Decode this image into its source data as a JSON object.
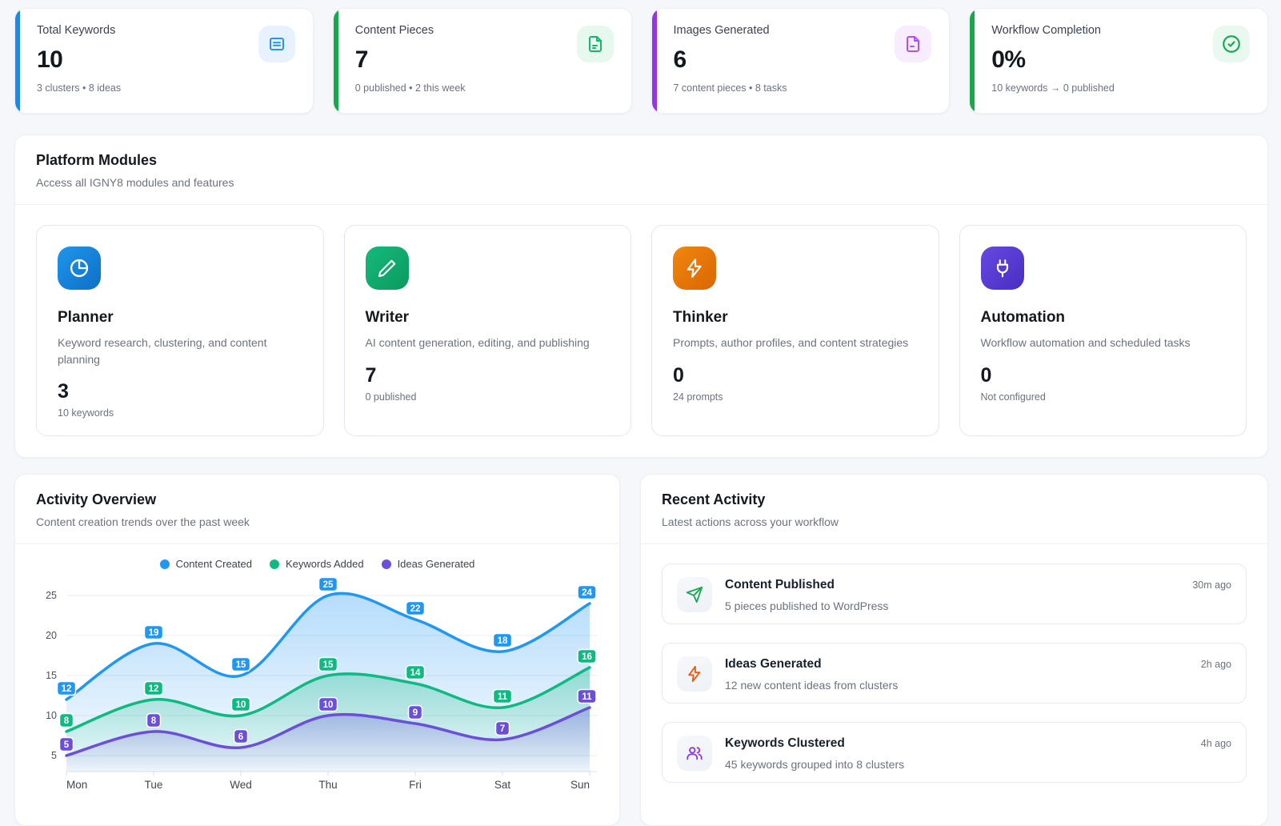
{
  "stats": [
    {
      "label": "Total Keywords",
      "value": "10",
      "sub": "3 clusters • 8 ideas",
      "accent": "#1e88e5",
      "icon": "list-box-icon",
      "icon_bg": "#e8f2fe",
      "icon_color": "#2196f3"
    },
    {
      "label": "Content Pieces",
      "value": "7",
      "sub": "0 published • 2 this week",
      "accent": "#17a74c",
      "icon": "file-text-icon",
      "icon_bg": "#e7f8ef",
      "icon_color": "#12b76a"
    },
    {
      "label": "Images Generated",
      "value": "6",
      "sub": "7 content pieces • 8 tasks",
      "accent": "#9333ea",
      "icon": "file-image-icon",
      "icon_bg": "#f8edfe",
      "icon_color": "#bb4df0"
    },
    {
      "label": "Workflow Completion",
      "value": "0%",
      "sub": "10 keywords → 0 published",
      "accent": "#17a74c",
      "icon": "check-circle-icon",
      "icon_bg": "#e9f9ef",
      "icon_color": "#16a94f"
    }
  ],
  "platform_modules": {
    "title": "Platform Modules",
    "subtitle": "Access all IGNY8 modules and features",
    "modules": [
      {
        "name": "Planner",
        "description": "Keyword research, clustering, and content planning",
        "value": "3",
        "sub": "10 keywords",
        "icon": "pie-chart-icon",
        "colors": [
          "#1e96ea",
          "#0d6fc8"
        ]
      },
      {
        "name": "Writer",
        "description": "AI content generation, editing, and publishing",
        "value": "7",
        "sub": "0 published",
        "icon": "pencil-icon",
        "colors": [
          "#16b97d",
          "#0b9a5e"
        ]
      },
      {
        "name": "Thinker",
        "description": "Prompts, author profiles, and content strategies",
        "value": "0",
        "sub": "24 prompts",
        "icon": "zap-icon",
        "colors": [
          "#f1860e",
          "#d96702"
        ]
      },
      {
        "name": "Automation",
        "description": "Workflow automation and scheduled tasks",
        "value": "0",
        "sub": "Not configured",
        "icon": "plug-icon",
        "colors": [
          "#6549e2",
          "#4a2dc2"
        ]
      }
    ]
  },
  "activity_overview": {
    "title": "Activity Overview",
    "subtitle": "Content creation trends over the past week"
  },
  "chart_data": {
    "type": "line",
    "x": [
      "Mon",
      "Tue",
      "Wed",
      "Thu",
      "Fri",
      "Sat",
      "Sun"
    ],
    "series": [
      {
        "name": "Content Created",
        "color": "#2196f3",
        "values": [
          12,
          19,
          15,
          25,
          22,
          18,
          24
        ]
      },
      {
        "name": "Keywords Added",
        "color": "#10b981",
        "values": [
          8,
          12,
          10,
          15,
          14,
          11,
          16
        ]
      },
      {
        "name": "Ideas Generated",
        "color": "#6b4fd8",
        "values": [
          5,
          8,
          6,
          10,
          9,
          7,
          11
        ]
      }
    ],
    "ylim": [
      5,
      25
    ],
    "yticks": [
      5,
      10,
      15,
      20,
      25
    ],
    "grid": true,
    "smooth": true,
    "area": true,
    "point_labels": true,
    "legend_position": "top"
  },
  "recent_activity": {
    "title": "Recent Activity",
    "subtitle": "Latest actions across your workflow",
    "items": [
      {
        "title": "Content Published",
        "description": "5 pieces published to WordPress",
        "time": "30m ago",
        "icon": "send-icon",
        "icon_color": "#16a94f"
      },
      {
        "title": "Ideas Generated",
        "description": "12 new content ideas from clusters",
        "time": "2h ago",
        "icon": "zap-icon",
        "icon_color": "#ea580c"
      },
      {
        "title": "Keywords Clustered",
        "description": "45 keywords grouped into 8 clusters",
        "time": "4h ago",
        "icon": "users-icon",
        "icon_color": "#9333ea"
      }
    ]
  }
}
